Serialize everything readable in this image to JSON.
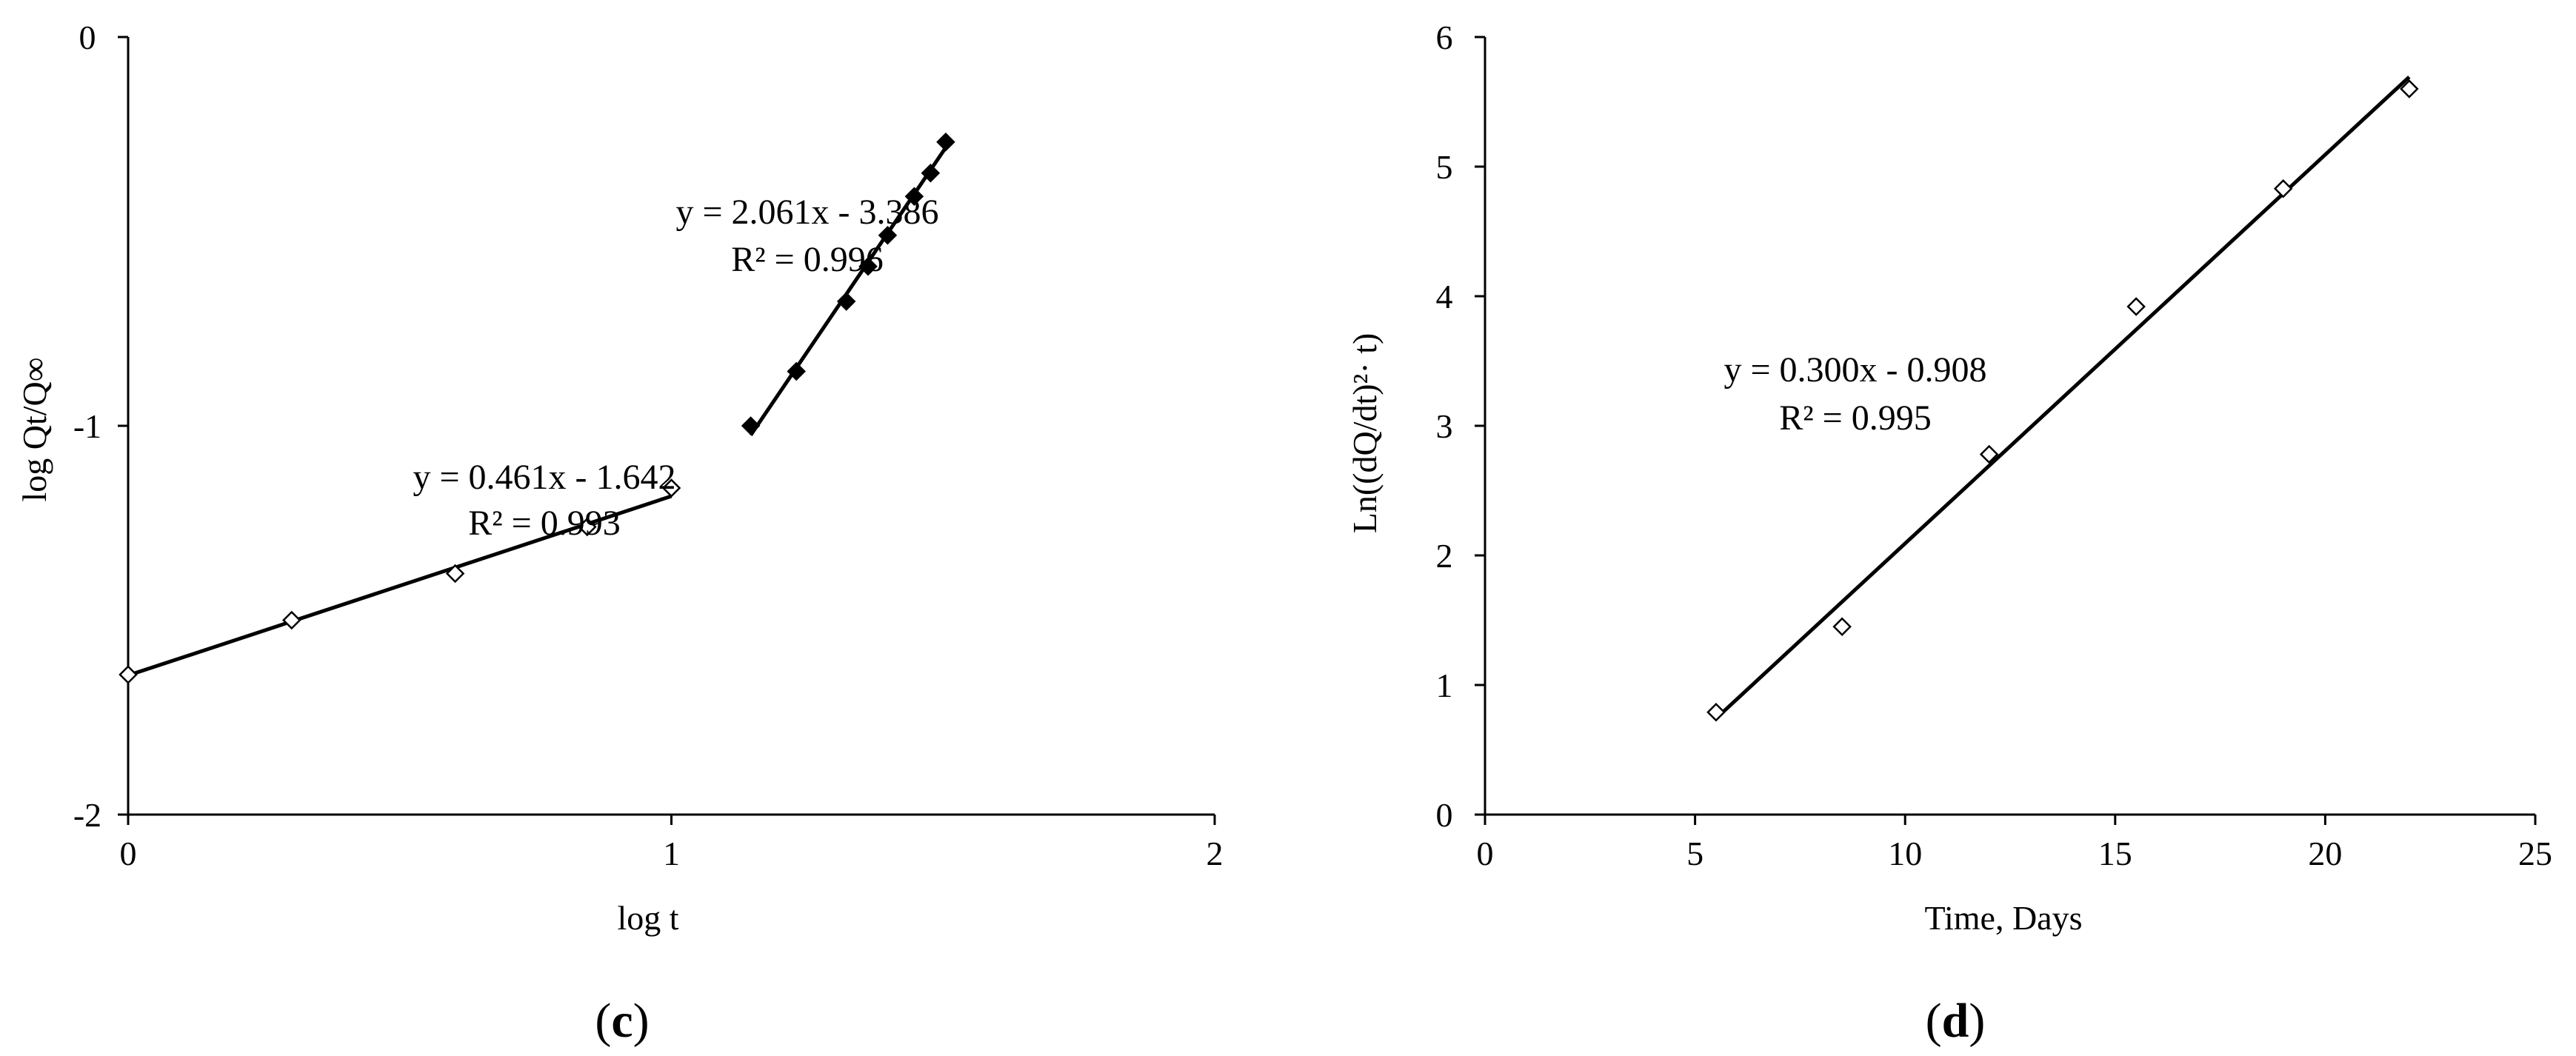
{
  "chart_data": [
    {
      "type": "scatter",
      "panel_label": "c",
      "xlabel": "log t",
      "ylabel": "log Qt/Q∞",
      "xlim": [
        0,
        2
      ],
      "ylim": [
        -2,
        0
      ],
      "xticks": [
        0,
        1,
        2
      ],
      "yticks": [
        -2,
        -1,
        0
      ],
      "x_tick_labels": [
        "0",
        "1",
        "2"
      ],
      "y_tick_labels": [
        "-2",
        "-1",
        "0"
      ],
      "grid": false,
      "series": [
        {
          "marker": "open-diamond",
          "x": [
            0.0,
            0.301,
            0.602,
            0.845,
            1.0
          ],
          "y": [
            -1.64,
            -1.5,
            -1.38,
            -1.26,
            -1.16
          ],
          "fit": {
            "slope": 0.461,
            "intercept": -1.642,
            "x_range": [
              0.0,
              1.0
            ]
          },
          "equation": "y = 0.461x - 1.642",
          "r2": "R² = 0.993"
        },
        {
          "marker": "filled-diamond",
          "x": [
            1.146,
            1.23,
            1.322,
            1.362,
            1.398,
            1.447,
            1.477,
            1.505
          ],
          "y": [
            -1.0,
            -0.86,
            -0.68,
            -0.59,
            -0.51,
            -0.41,
            -0.35,
            -0.27
          ],
          "fit": {
            "slope": 2.061,
            "intercept": -3.386,
            "x_range": [
              1.146,
              1.505
            ]
          },
          "equation": "y = 2.061x - 3.386",
          "r2": "R² = 0.996"
        }
      ]
    },
    {
      "type": "scatter",
      "panel_label": "d",
      "xlabel": "Time, Days",
      "ylabel": "Ln((dQ/dt)²· t)",
      "xlim": [
        0,
        25
      ],
      "ylim": [
        0,
        6
      ],
      "xticks": [
        0,
        5,
        10,
        15,
        20,
        25
      ],
      "yticks": [
        0,
        1,
        2,
        3,
        4,
        5,
        6
      ],
      "x_tick_labels": [
        "0",
        "5",
        "10",
        "15",
        "20",
        "25"
      ],
      "y_tick_labels": [
        "0",
        "1",
        "2",
        "3",
        "4",
        "5",
        "6"
      ],
      "grid": false,
      "series": [
        {
          "marker": "open-diamond",
          "x": [
            5.5,
            8.5,
            12.0,
            15.5,
            19.0,
            22.0
          ],
          "y": [
            0.79,
            1.45,
            2.78,
            3.92,
            4.83,
            5.6
          ],
          "fit": {
            "slope": 0.3,
            "intercept": -0.908,
            "x_range": [
              5.5,
              22.0
            ]
          },
          "equation": "y = 0.300x - 0.908",
          "r2": "R² = 0.995"
        }
      ]
    }
  ]
}
